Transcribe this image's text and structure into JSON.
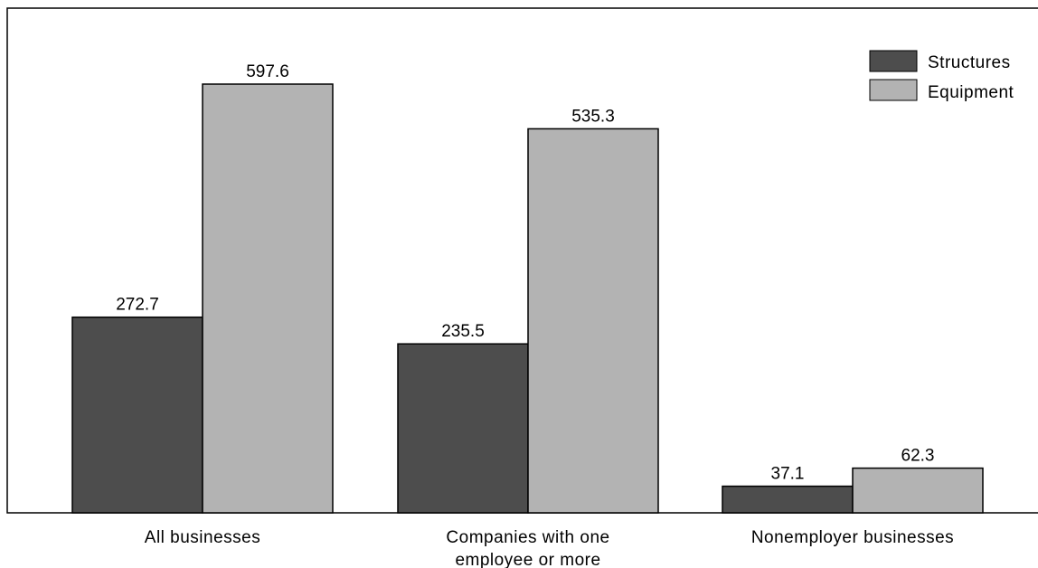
{
  "chart_data": {
    "type": "bar",
    "categories": [
      [
        "All businesses"
      ],
      [
        "Companies with one",
        "employee or more"
      ],
      [
        "Nonemployer businesses"
      ]
    ],
    "series": [
      {
        "name": "Structures",
        "color": "#4d4d4d",
        "values": [
          272.7,
          235.5,
          37.1
        ],
        "labels": [
          "272.7",
          "235.5",
          "37.1"
        ]
      },
      {
        "name": "Equipment",
        "color": "#b3b3b3",
        "values": [
          597.6,
          535.3,
          62.3
        ],
        "labels": [
          "597.6",
          "535.3",
          "62.3"
        ]
      }
    ],
    "ylim": [
      0,
      700
    ],
    "grid": false,
    "legend": "top-right"
  }
}
